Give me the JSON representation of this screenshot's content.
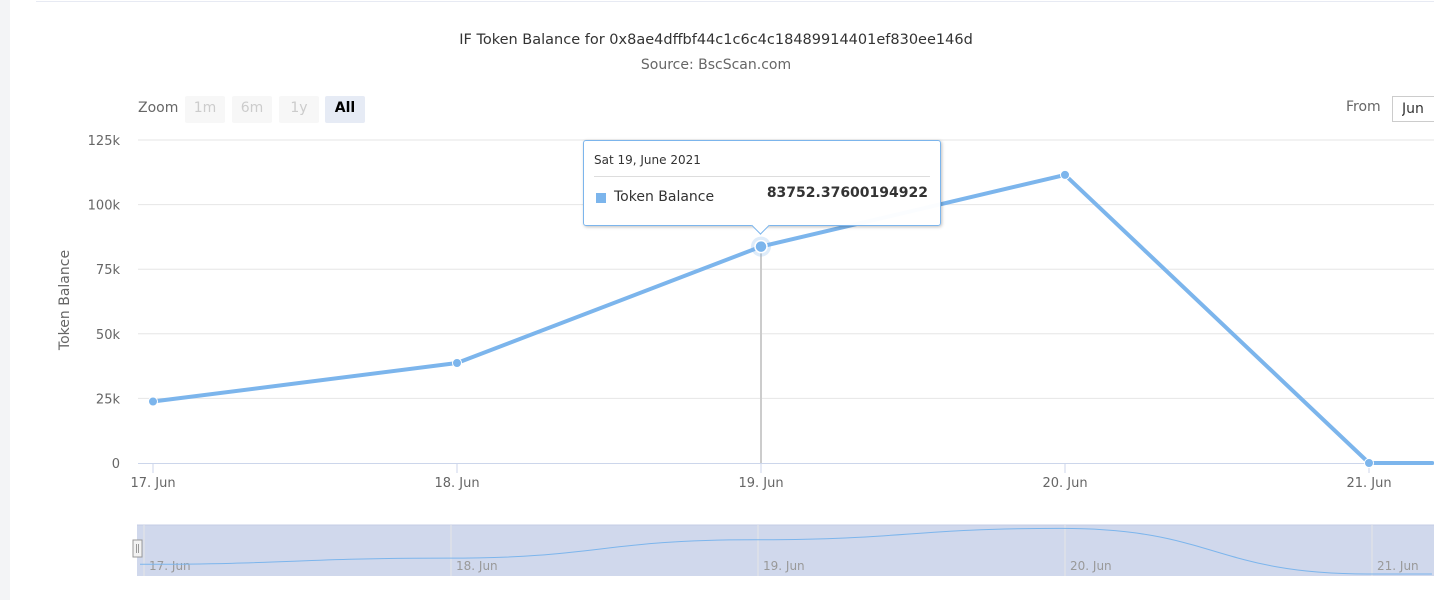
{
  "chart_data": {
    "type": "line",
    "title": "IF Token Balance for 0x8ae4dffbf44c1c6c4c18489914401ef830ee146d",
    "subtitle": "Source: BscScan.com",
    "ylabel": "Token Balance",
    "xlabel": "",
    "ylim": [
      0,
      125000
    ],
    "y_ticks": [
      0,
      25000,
      50000,
      75000,
      100000,
      125000
    ],
    "y_tick_labels": [
      "0",
      "25k",
      "50k",
      "75k",
      "100k",
      "125k"
    ],
    "x_tick_labels": [
      "17. Jun",
      "18. Jun",
      "19. Jun",
      "20. Jun",
      "21. Jun"
    ],
    "grid": true,
    "series": [
      {
        "name": "Token Balance",
        "color": "#7cb5ec",
        "points": [
          {
            "date": "2021-06-17",
            "value": 23800
          },
          {
            "date": "2021-06-18",
            "value": 38700
          },
          {
            "date": "2021-06-19",
            "value": 83752.37600194922
          },
          {
            "date": "2021-06-20",
            "value": 111500
          },
          {
            "date": "2021-06-21",
            "value": 0
          },
          {
            "date": "2021-06-21T05:00",
            "value": 0
          }
        ]
      }
    ],
    "tooltip": {
      "date": "Sat 19, June 2021",
      "series_name": "Token Balance",
      "value": "83752.37600194922"
    },
    "navigator": {
      "x_tick_labels": [
        "17. Jun",
        "18. Jun",
        "19. Jun",
        "20. Jun",
        "21. Jun"
      ]
    }
  },
  "controls": {
    "zoom_label": "Zoom",
    "zoom_buttons": [
      "1m",
      "6m",
      "1y",
      "All"
    ],
    "zoom_active": "All",
    "from_label": "From",
    "from_value": "Jun"
  },
  "colors": {
    "series": "#7cb5ec",
    "navigator_fill": "#d0d8ec",
    "grid": "#e6e6e6"
  }
}
